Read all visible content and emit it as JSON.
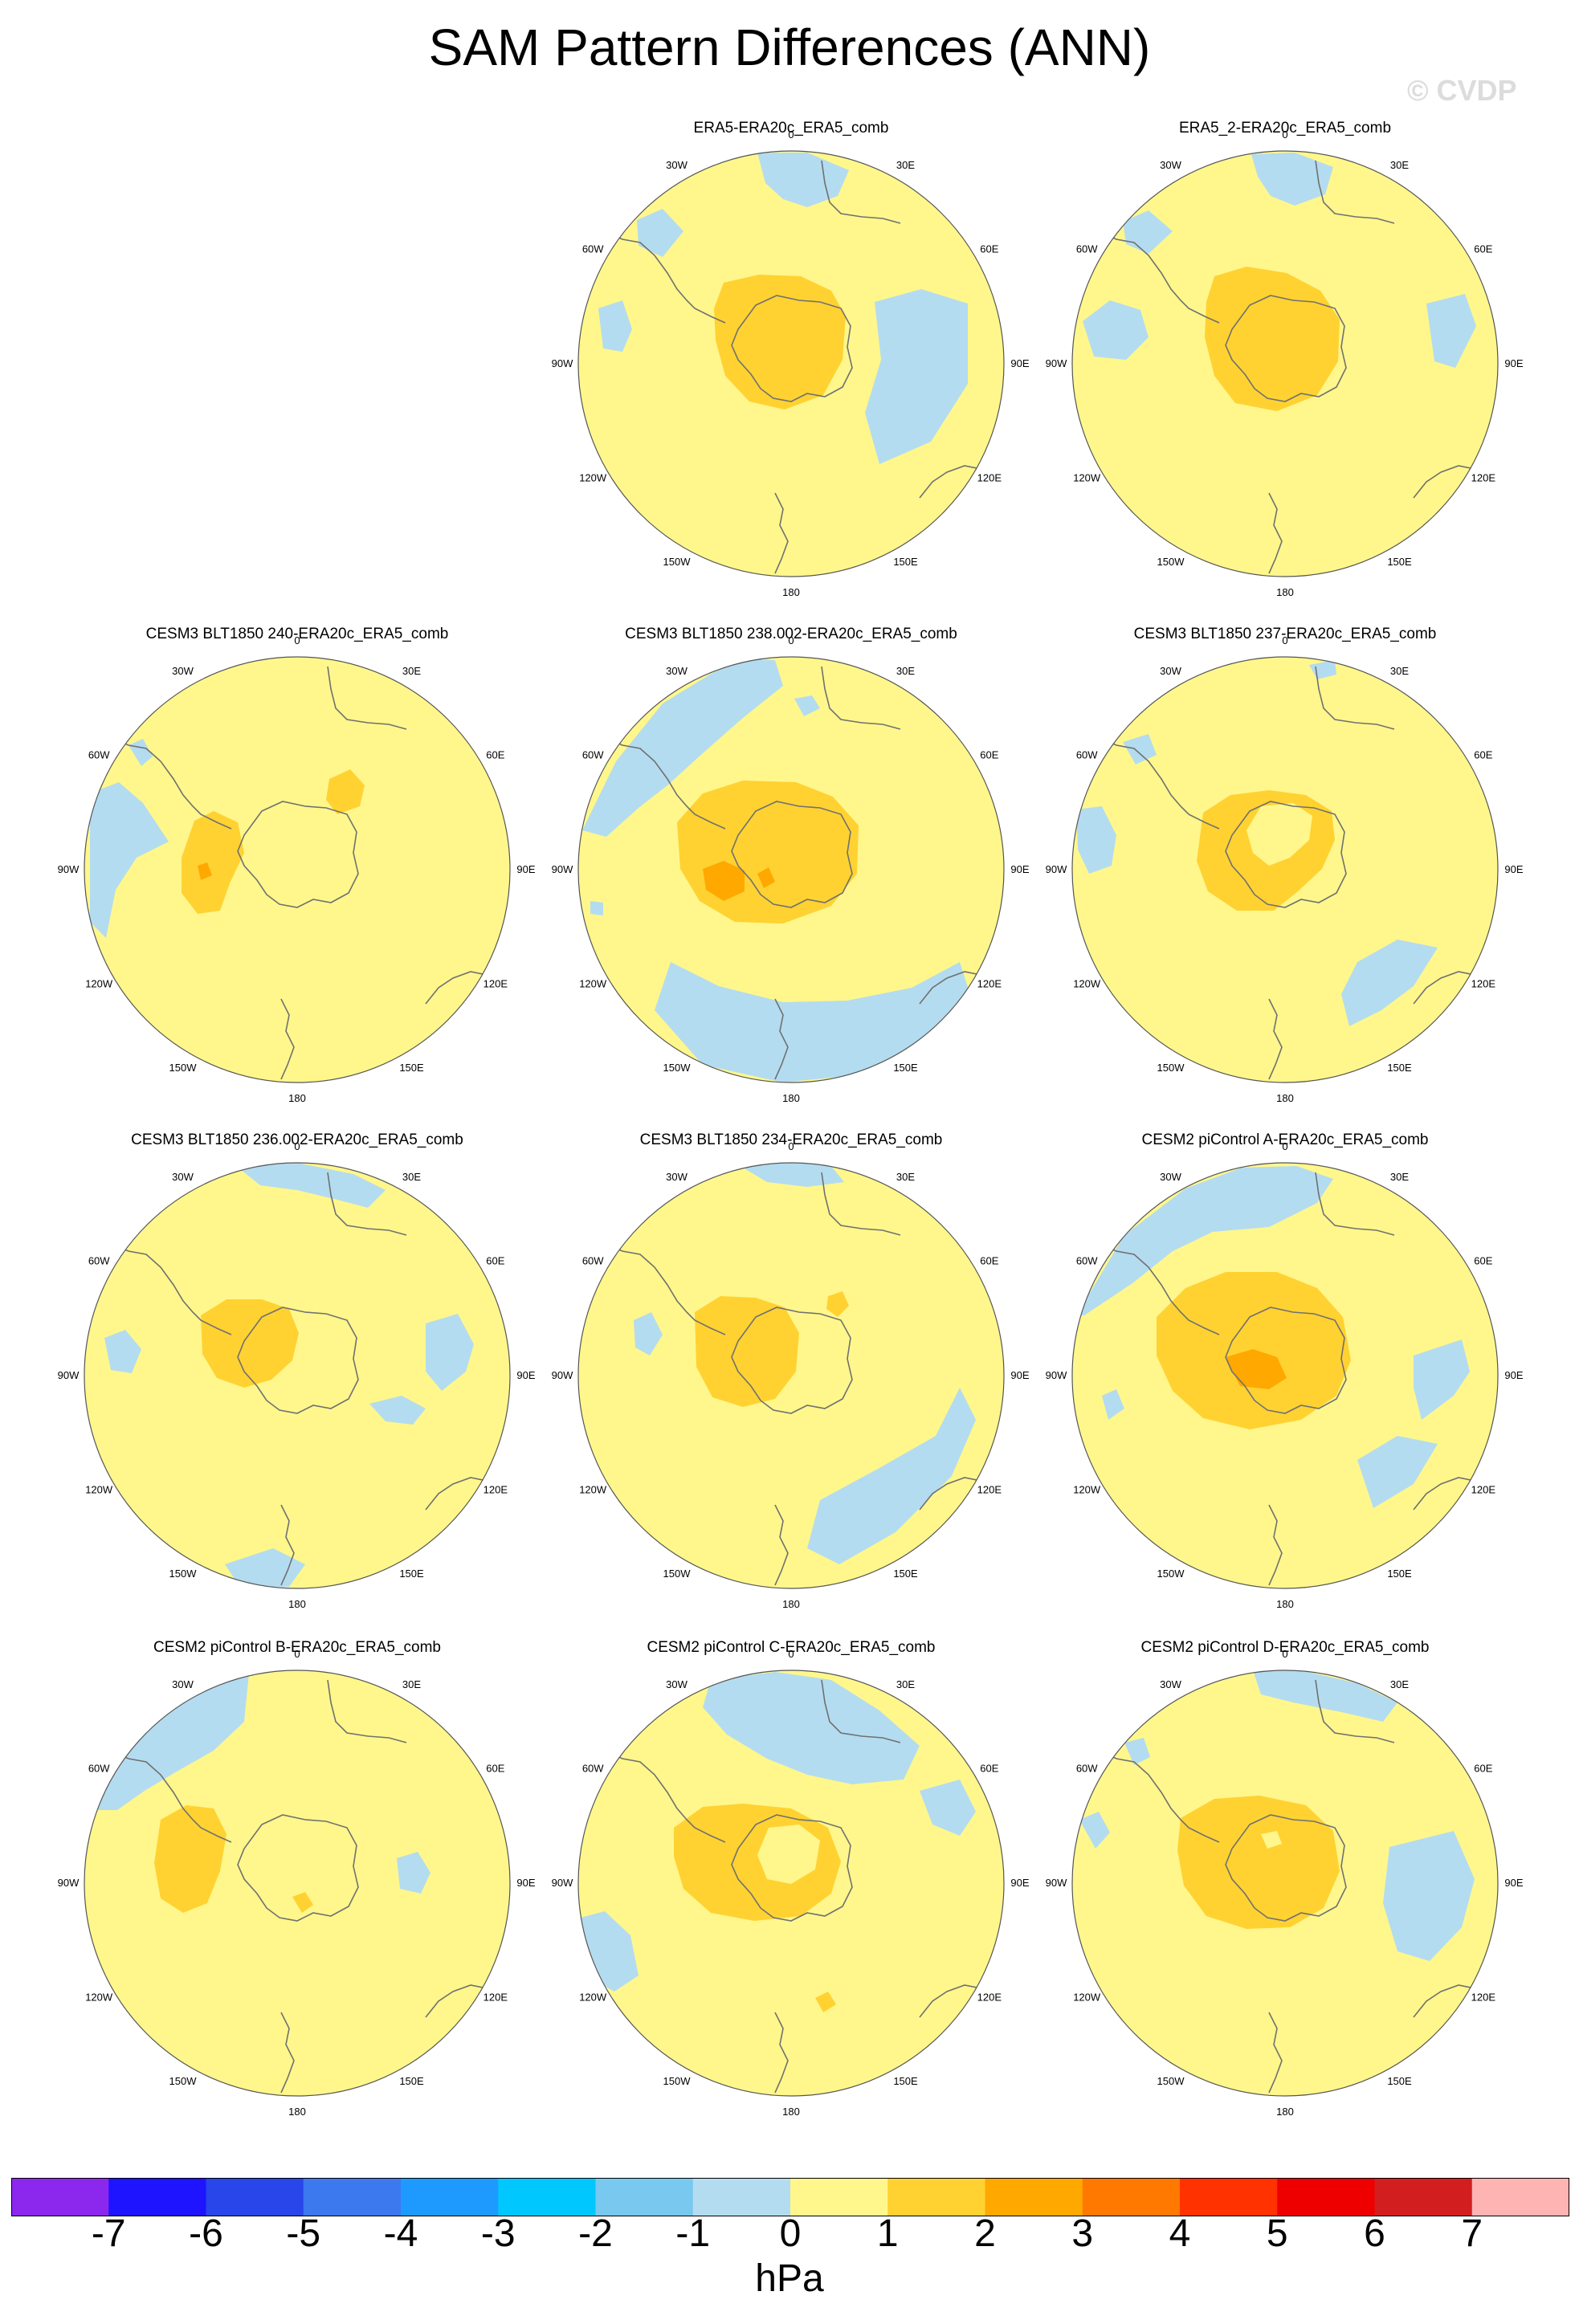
{
  "title": "SAM Pattern Differences (ANN)",
  "watermark": "© CVDP",
  "lon_labels": [
    "0",
    "30E",
    "60E",
    "90E",
    "120E",
    "150E",
    "180",
    "150W",
    "120W",
    "90W",
    "60W",
    "30W"
  ],
  "colors": {
    "neg_light": "#b4dcf0",
    "pos_light": "#fff78c",
    "pos_mid": "#ffd232",
    "pos_strong": "#ffa800"
  },
  "panels": [
    {
      "title": "ERA5-ERA20c_ERA5_comb",
      "row": 0,
      "col": 1
    },
    {
      "title": "ERA5_2-ERA20c_ERA5_comb",
      "row": 0,
      "col": 2
    },
    {
      "title": "CESM3 BLT1850 240-ERA20c_ERA5_comb",
      "row": 1,
      "col": 0
    },
    {
      "title": "CESM3 BLT1850 238.002-ERA20c_ERA5_comb",
      "row": 1,
      "col": 1
    },
    {
      "title": "CESM3 BLT1850 237-ERA20c_ERA5_comb",
      "row": 1,
      "col": 2
    },
    {
      "title": "CESM3 BLT1850 236.002-ERA20c_ERA5_comb",
      "row": 2,
      "col": 0
    },
    {
      "title": "CESM3 BLT1850 234-ERA20c_ERA5_comb",
      "row": 2,
      "col": 1
    },
    {
      "title": "CESM2 piControl A-ERA20c_ERA5_comb",
      "row": 2,
      "col": 2
    },
    {
      "title": "CESM2 piControl B-ERA20c_ERA5_comb",
      "row": 3,
      "col": 0
    },
    {
      "title": "CESM2 piControl C-ERA20c_ERA5_comb",
      "row": 3,
      "col": 1
    },
    {
      "title": "CESM2 piControl D-ERA20c_ERA5_comb",
      "row": 3,
      "col": 2
    }
  ],
  "colorbar": {
    "units": "hPa",
    "ticks": [
      "-7",
      "-6",
      "-5",
      "-4",
      "-3",
      "-2",
      "-1",
      "0",
      "1",
      "2",
      "3",
      "4",
      "5",
      "6",
      "7"
    ],
    "colors": [
      "#8c28ee",
      "#1e14ff",
      "#2846ea",
      "#3c78ee",
      "#1e9aff",
      "#00c8ff",
      "#78c8f0",
      "#b4dcf0",
      "#fff78c",
      "#ffd232",
      "#ffa800",
      "#ff7800",
      "#ff3200",
      "#ee0000",
      "#d21e1e",
      "#ffb4b4"
    ]
  }
}
